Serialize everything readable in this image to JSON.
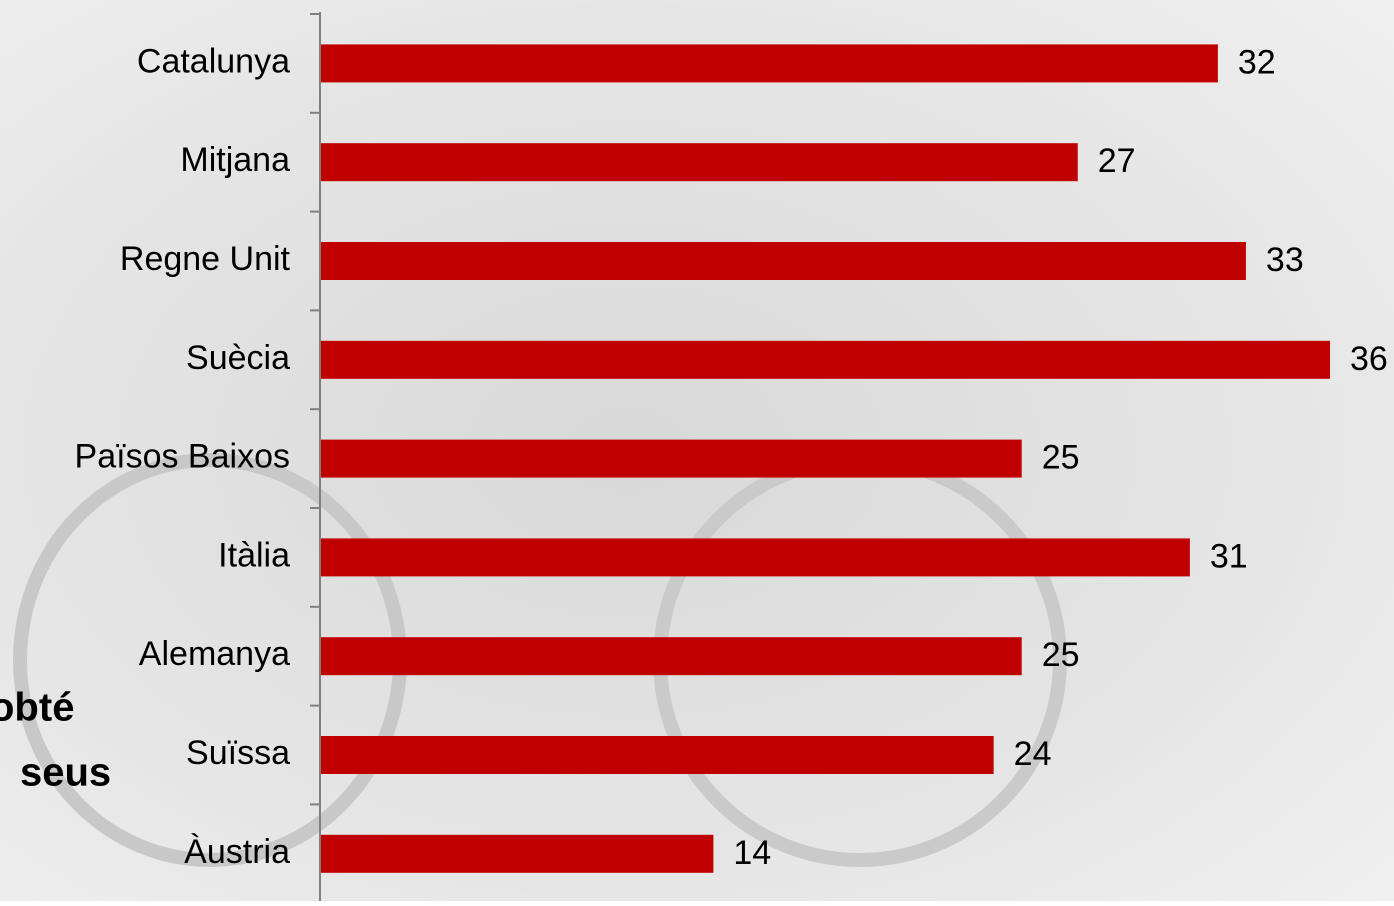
{
  "chart_data": {
    "type": "bar",
    "orientation": "horizontal",
    "categories": [
      "Catalunya",
      "Mitjana",
      "Regne Unit",
      "Suècia",
      "Països Baixos",
      "Itàlia",
      "Alemanya",
      "Suïssa",
      "Àustria"
    ],
    "values": [
      32,
      27,
      33,
      36,
      25,
      31,
      25,
      24,
      14
    ],
    "color": "#c00000"
  },
  "background_text": [
    "obté",
    "seus"
  ]
}
